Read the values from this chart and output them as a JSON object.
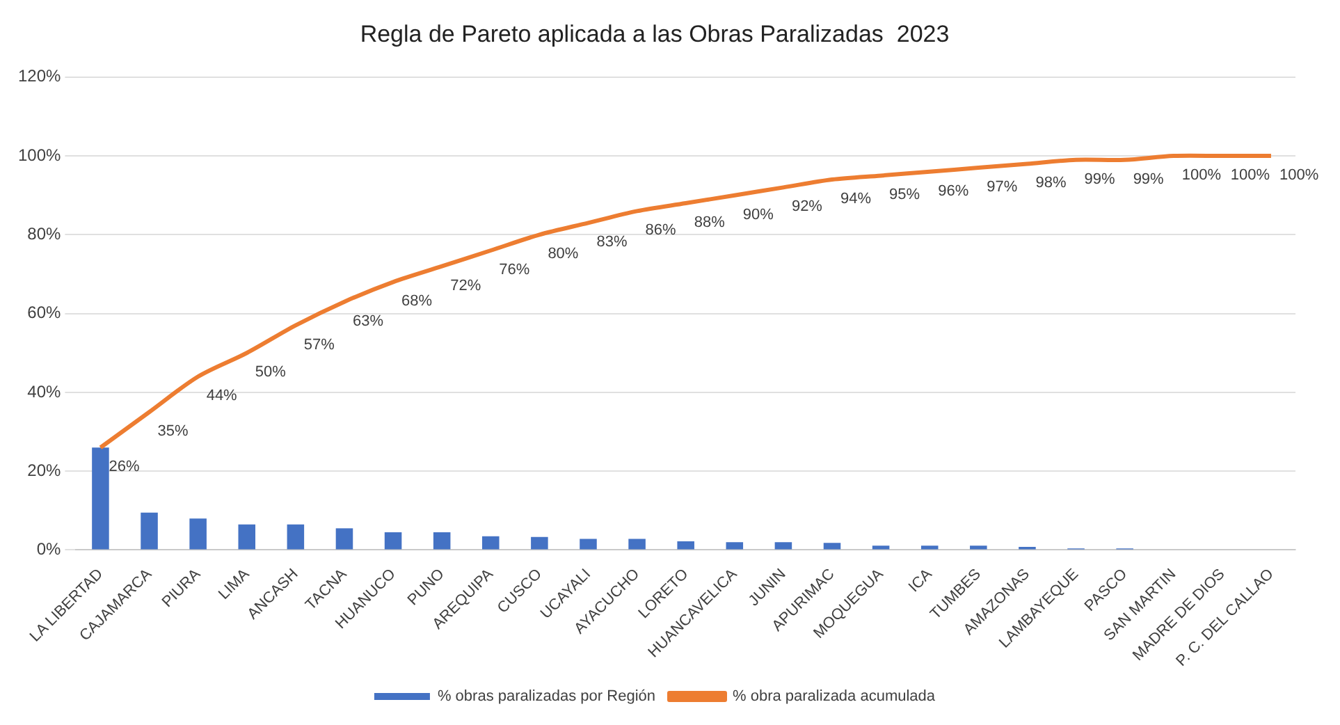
{
  "chart_data": {
    "type": "bar",
    "title": "Regla de Pareto aplicada a las Obras Paralizadas  2023",
    "categories": [
      "LA LIBERTAD",
      "CAJAMARCA",
      "PIURA",
      "LIMA",
      "ANCASH",
      "TACNA",
      "HUANUCO",
      "PUNO",
      "AREQUIPA",
      "CUSCO",
      "UCAYALI",
      "AYACUCHO",
      "LORETO",
      "HUANCAVELICA",
      "JUNIN",
      "APURIMAC",
      "MOQUEGUA",
      "ICA",
      "TUMBES",
      "AMAZONAS",
      "LAMBAYEQUE",
      "PASCO",
      "SAN MARTIN",
      "MADRE DE DIOS",
      "P. C. DEL CALLAO"
    ],
    "series": [
      {
        "name": "% obras paralizadas por Región",
        "color": "#4472c4",
        "values": [
          26,
          9.5,
          8,
          6.5,
          6.5,
          5.5,
          4.5,
          4.5,
          3.5,
          3.3,
          2.8,
          2.8,
          2.2,
          2,
          2,
          1.8,
          1.1,
          1.1,
          1.1,
          0.8,
          0.4,
          0.4,
          0,
          0,
          0
        ]
      },
      {
        "name": "% obra paralizada acumulada",
        "type": "line",
        "color": "#ed7d31",
        "marker": "none",
        "values": [
          26,
          35,
          44,
          50,
          57,
          63,
          68,
          72,
          76,
          80,
          83,
          86,
          88,
          90,
          92,
          94,
          95,
          96,
          97,
          98,
          99,
          99,
          100,
          100,
          100
        ],
        "value_labels": [
          "26%",
          "35%",
          "44%",
          "50%",
          "57%",
          "63%",
          "68%",
          "72%",
          "76%",
          "80%",
          "83%",
          "86%",
          "88%",
          "90%",
          "92%",
          "94%",
          "95%",
          "96%",
          "97%",
          "98%",
          "99%",
          "99%",
          "100%",
          "100%",
          "100%"
        ]
      }
    ],
    "ylim": [
      0,
      120
    ],
    "yticks": [
      {
        "value": 0,
        "label": "0%"
      },
      {
        "value": 20,
        "label": "20%"
      },
      {
        "value": 40,
        "label": "40%"
      },
      {
        "value": 60,
        "label": "60%"
      },
      {
        "value": 80,
        "label": "80%"
      },
      {
        "value": 100,
        "label": "100%"
      },
      {
        "value": 120,
        "label": "120%"
      }
    ],
    "grid": "y",
    "legend": "bottom"
  }
}
